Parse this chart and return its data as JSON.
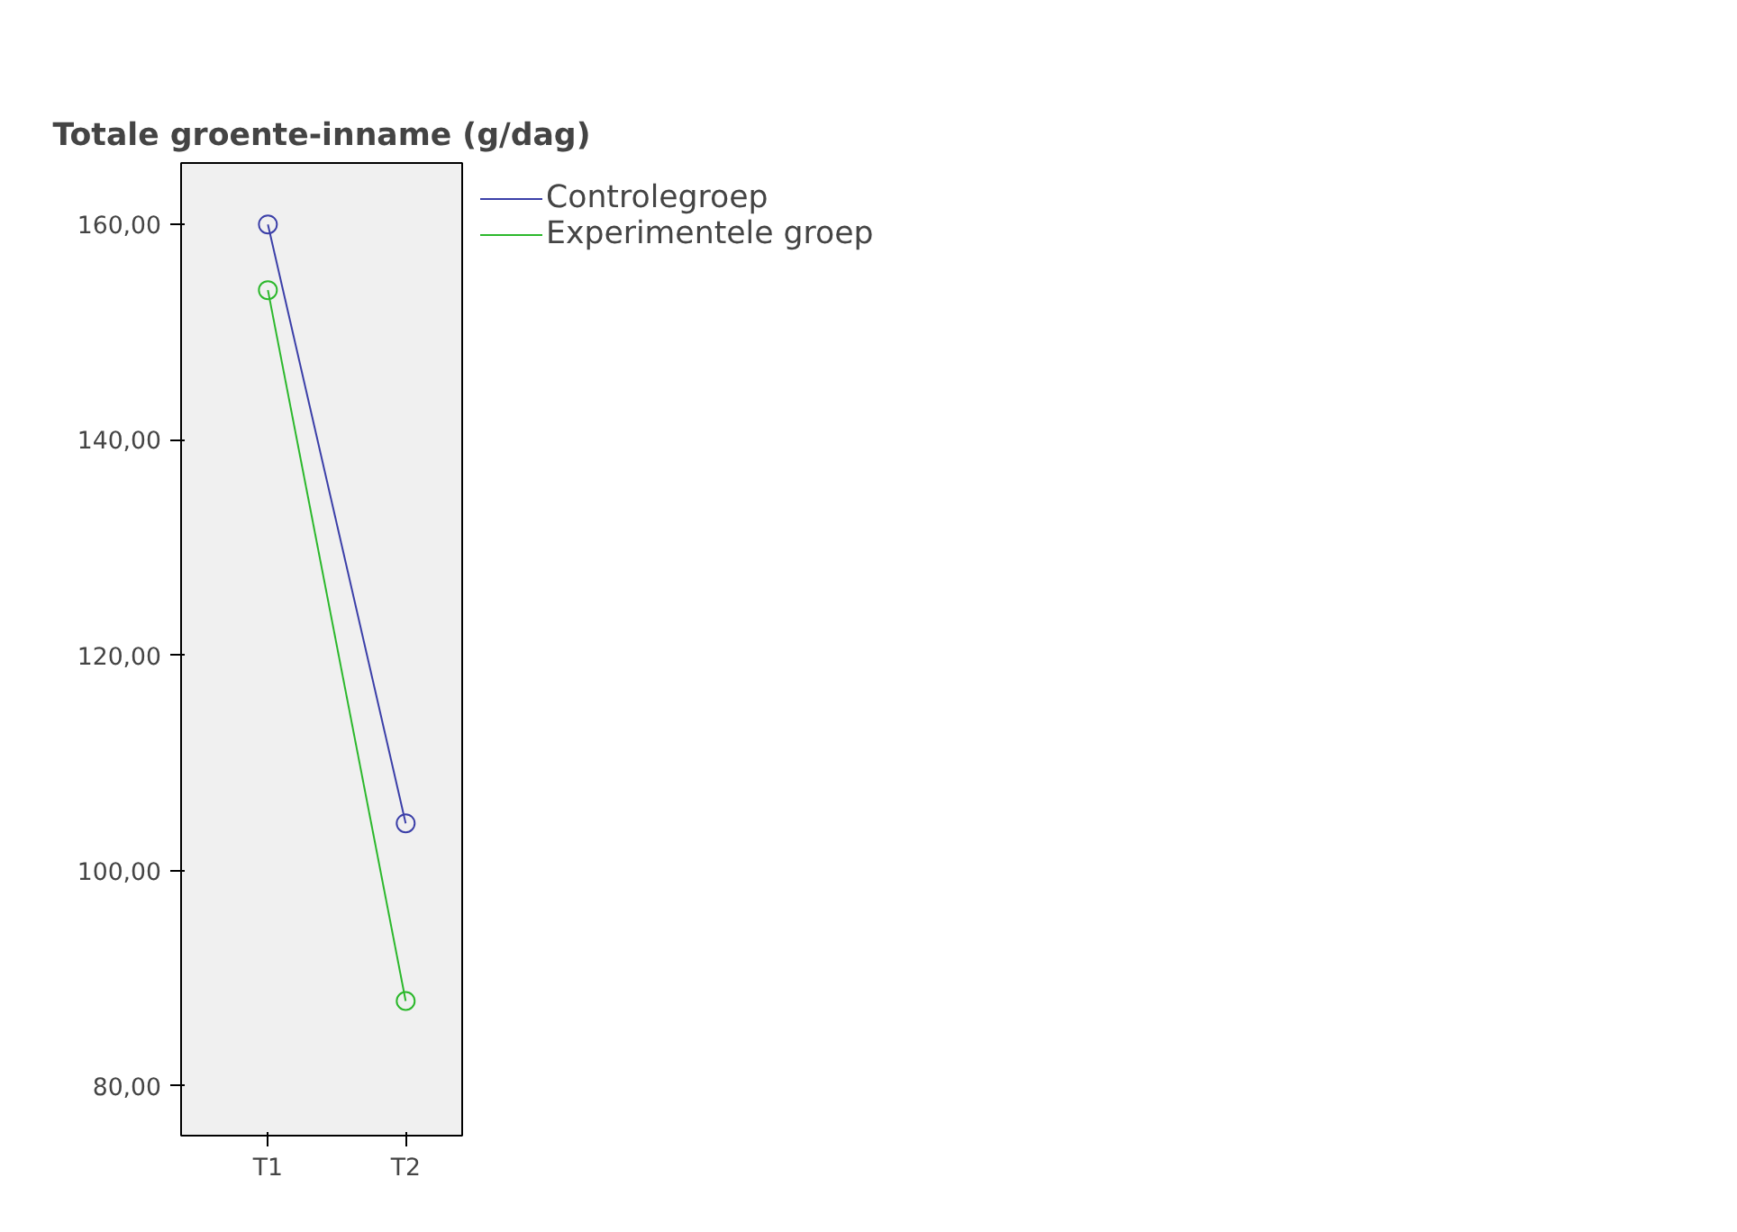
{
  "chart_data": {
    "type": "line",
    "title": "Totale groente-inname (g/dag)",
    "categories": [
      "T1",
      "T2"
    ],
    "series": [
      {
        "name": "Controlegroep",
        "color": "#3b3fa8",
        "values": [
          160.0,
          104.4
        ]
      },
      {
        "name": "Experimentele groep",
        "color": "#2cb82c",
        "values": [
          153.9,
          87.9
        ]
      }
    ],
    "ylim": [
      75.4,
      165.7
    ],
    "yticks": [
      {
        "value": 80,
        "label": "80,00"
      },
      {
        "value": 100,
        "label": "100,00"
      },
      {
        "value": 120,
        "label": "120,00"
      },
      {
        "value": 140,
        "label": "140,00"
      },
      {
        "value": 160,
        "label": "160,00"
      }
    ],
    "grid": false,
    "legend": "right",
    "marker": "circle",
    "line_style": "solid"
  }
}
